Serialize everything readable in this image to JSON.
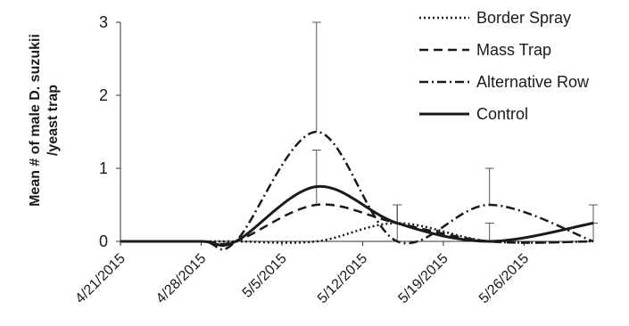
{
  "chart_data": {
    "type": "line",
    "ylabel_line1": "Mean # of male D. suzukii",
    "ylabel_line2": "/yeast trap",
    "yticks": [
      "0",
      "1",
      "2",
      "3"
    ],
    "ylim": [
      0,
      3
    ],
    "xticks": [
      "4/21/2015",
      "4/28/2015",
      "5/5/2015",
      "5/12/2015",
      "5/19/2015",
      "5/26/2015"
    ],
    "xlim": [
      "4/21/2015",
      "6/1/2015"
    ],
    "grid": false,
    "legend_position": "top-right",
    "series": [
      {
        "name": "Border Spray",
        "style": "dotted",
        "x": [
          "4/21/2015",
          "4/28/2015",
          "5/1/2015",
          "5/8/2015",
          "5/15/2015",
          "5/23/2015",
          "6/1/2015"
        ],
        "y": [
          0,
          0,
          0,
          0,
          0.25,
          0,
          0
        ],
        "error": [
          0,
          0,
          0,
          0,
          0.25,
          0,
          0
        ]
      },
      {
        "name": "Mass Trap",
        "style": "dashed",
        "x": [
          "4/21/2015",
          "4/28/2015",
          "5/1/2015",
          "5/8/2015",
          "5/15/2015",
          "5/23/2015",
          "6/1/2015"
        ],
        "y": [
          0,
          0,
          0,
          0.5,
          0.25,
          0,
          0
        ],
        "error": [
          0,
          0,
          0,
          0.25,
          0.25,
          0,
          0
        ]
      },
      {
        "name": "Alternative Row",
        "style": "dash-dot",
        "x": [
          "4/21/2015",
          "4/28/2015",
          "5/1/2015",
          "5/8/2015",
          "5/15/2015",
          "5/23/2015",
          "6/1/2015"
        ],
        "y": [
          0,
          0,
          0,
          1.5,
          0,
          0.5,
          0
        ],
        "error": [
          0,
          0,
          0,
          1.5,
          0.25,
          0.5,
          0.25
        ]
      },
      {
        "name": "Control",
        "style": "solid",
        "x": [
          "4/21/2015",
          "4/28/2015",
          "5/1/2015",
          "5/8/2015",
          "5/15/2015",
          "5/23/2015",
          "6/1/2015"
        ],
        "y": [
          0,
          0,
          0,
          0.75,
          0.25,
          0,
          0.25
        ],
        "error": [
          0,
          0,
          0,
          0.5,
          0.25,
          0.25,
          0.25
        ]
      }
    ]
  }
}
